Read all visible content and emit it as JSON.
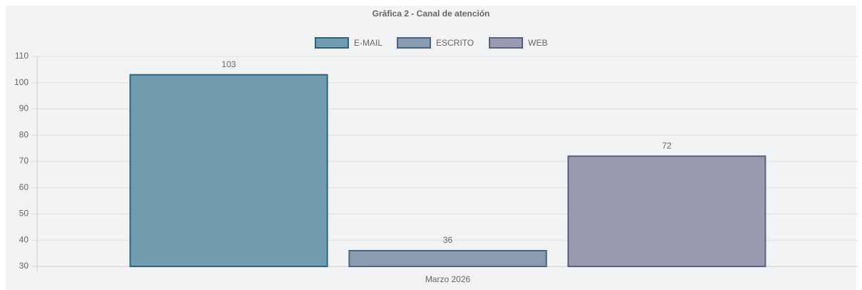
{
  "chart_data": {
    "type": "bar",
    "title": "Gráfica 2 - Canal de atención",
    "categories": [
      "Marzo 2026"
    ],
    "series": [
      {
        "name": "E-MAIL",
        "color": "#729dae",
        "border": "#2e6480",
        "values": [
          103
        ]
      },
      {
        "name": "ESCRITO",
        "color": "#8a9db0",
        "border": "#4a6480",
        "values": [
          36
        ]
      },
      {
        "name": "WEB",
        "color": "#989bb0",
        "border": "#5a5e86",
        "values": [
          72
        ]
      }
    ],
    "ylim": [
      30,
      110
    ],
    "yticks": [
      30,
      40,
      50,
      60,
      70,
      80,
      90,
      100,
      110
    ],
    "grid": true,
    "legend": "top"
  }
}
